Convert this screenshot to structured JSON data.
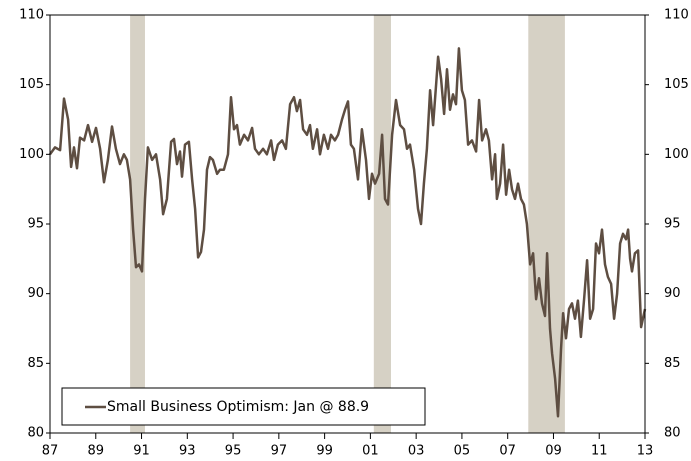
{
  "chart_data": {
    "type": "line",
    "legend": "lower left",
    "xlim": [
      1987,
      2013
    ],
    "ylim": [
      80,
      110
    ],
    "yticks": [
      80,
      85,
      90,
      95,
      100,
      105,
      110
    ],
    "xticks": [
      {
        "value": 1987,
        "label": "87"
      },
      {
        "value": 1989,
        "label": "89"
      },
      {
        "value": 1991,
        "label": "91"
      },
      {
        "value": 1993,
        "label": "93"
      },
      {
        "value": 1995,
        "label": "95"
      },
      {
        "value": 1997,
        "label": "97"
      },
      {
        "value": 1999,
        "label": "99"
      },
      {
        "value": 2001,
        "label": "01"
      },
      {
        "value": 2003,
        "label": "03"
      },
      {
        "value": 2005,
        "label": "05"
      },
      {
        "value": 2007,
        "label": "07"
      },
      {
        "value": 2009,
        "label": "09"
      },
      {
        "value": 2011,
        "label": "11"
      },
      {
        "value": 2013,
        "label": "13"
      }
    ],
    "shaded_periods": [
      [
        1990.5,
        1991.15
      ],
      [
        2001.15,
        2001.9
      ],
      [
        2007.9,
        2009.5
      ]
    ],
    "shade_color": "#d6d1c5",
    "x": [
      1987.0,
      1987.22,
      1987.44,
      1987.61,
      1987.79,
      1987.92,
      1988.05,
      1988.18,
      1988.31,
      1988.49,
      1988.66,
      1988.84,
      1989.01,
      1989.19,
      1989.36,
      1989.53,
      1989.71,
      1989.88,
      1990.06,
      1990.23,
      1990.36,
      1990.5,
      1990.63,
      1990.76,
      1990.89,
      1991.02,
      1991.15,
      1991.28,
      1991.46,
      1991.63,
      1991.81,
      1991.94,
      1992.11,
      1992.29,
      1992.42,
      1992.55,
      1992.68,
      1992.77,
      1992.9,
      1993.07,
      1993.21,
      1993.34,
      1993.47,
      1993.6,
      1993.73,
      1993.86,
      1993.99,
      1994.12,
      1994.3,
      1994.43,
      1994.6,
      1994.78,
      1994.91,
      1995.04,
      1995.17,
      1995.3,
      1995.48,
      1995.65,
      1995.83,
      1995.96,
      1996.13,
      1996.31,
      1996.48,
      1996.66,
      1996.79,
      1996.96,
      1997.14,
      1997.31,
      1997.49,
      1997.66,
      1997.79,
      1997.93,
      1998.06,
      1998.23,
      1998.36,
      1998.49,
      1998.67,
      1998.8,
      1998.97,
      1999.15,
      1999.28,
      1999.45,
      1999.59,
      1999.76,
      1999.89,
      2000.02,
      2000.15,
      2000.28,
      2000.46,
      2000.63,
      2000.81,
      2000.94,
      2001.07,
      2001.2,
      2001.38,
      2001.51,
      2001.64,
      2001.77,
      2001.95,
      2002.12,
      2002.3,
      2002.47,
      2002.6,
      2002.73,
      2002.91,
      2003.08,
      2003.21,
      2003.34,
      2003.47,
      2003.61,
      2003.74,
      2003.87,
      2003.96,
      2004.09,
      2004.22,
      2004.35,
      2004.48,
      2004.61,
      2004.74,
      2004.87,
      2005.0,
      2005.13,
      2005.27,
      2005.44,
      2005.62,
      2005.75,
      2005.88,
      2006.05,
      2006.18,
      2006.32,
      2006.45,
      2006.53,
      2006.67,
      2006.8,
      2006.93,
      2007.06,
      2007.19,
      2007.32,
      2007.45,
      2007.58,
      2007.71,
      2007.84,
      2007.98,
      2008.11,
      2008.24,
      2008.37,
      2008.5,
      2008.63,
      2008.72,
      2008.85,
      2008.94,
      2009.07,
      2009.2,
      2009.33,
      2009.42,
      2009.55,
      2009.68,
      2009.81,
      2009.94,
      2010.07,
      2010.2,
      2010.34,
      2010.47,
      2010.6,
      2010.73,
      2010.86,
      2010.99,
      2011.12,
      2011.25,
      2011.38,
      2011.52,
      2011.65,
      2011.78,
      2011.91,
      2012.04,
      2012.17,
      2012.26,
      2012.35,
      2012.43,
      2012.56,
      2012.7,
      2012.83,
      2013.0
    ],
    "series": [
      {
        "name": "Small Business Optimism: Jan @ 88.9",
        "color": "#5e4e42",
        "values": [
          100,
          100.5,
          100.3,
          104,
          102.5,
          99.1,
          100.5,
          99,
          101.2,
          101,
          102.1,
          100.9,
          101.9,
          100.4,
          98,
          99.6,
          102,
          100.4,
          99.3,
          100,
          99.6,
          98.2,
          94.6,
          91.9,
          92.1,
          91.6,
          96.8,
          100.5,
          99.6,
          100,
          98.2,
          95.7,
          96.8,
          100.9,
          101.1,
          99.3,
          100.2,
          98.4,
          100.7,
          100.9,
          98.2,
          96.1,
          92.6,
          93,
          94.6,
          98.9,
          99.8,
          99.6,
          98.6,
          98.9,
          98.9,
          100,
          104.1,
          101.8,
          102.1,
          100.7,
          101.4,
          101,
          101.9,
          100.4,
          100,
          100.4,
          100,
          101,
          99.6,
          100.7,
          101,
          100.4,
          103.6,
          104.1,
          103.1,
          103.9,
          101.8,
          101.4,
          102.1,
          100.4,
          101.8,
          100,
          101.4,
          100.4,
          101.4,
          101,
          101.4,
          102.5,
          103.2,
          103.8,
          100.7,
          100.4,
          98.2,
          101.8,
          99.6,
          96.8,
          98.6,
          97.9,
          98.6,
          101.4,
          96.8,
          96.4,
          101.4,
          103.9,
          102.1,
          101.8,
          100.4,
          100.7,
          98.9,
          96.1,
          95,
          97.9,
          100.4,
          104.6,
          102.1,
          105,
          107,
          105.4,
          102.9,
          106.1,
          103.2,
          104.3,
          103.6,
          107.6,
          104.6,
          103.9,
          100.7,
          101,
          100.2,
          103.9,
          101,
          101.8,
          101,
          98.2,
          100,
          96.8,
          97.9,
          100.7,
          97.1,
          98.9,
          97.5,
          96.8,
          97.9,
          96.8,
          96.4,
          95,
          92.1,
          92.9,
          89.6,
          91.1,
          89.3,
          88.4,
          92.9,
          87.5,
          85.7,
          83.9,
          81.2,
          86,
          88.6,
          86.8,
          88.9,
          89.3,
          88.2,
          89.5,
          86.9,
          89.6,
          92.4,
          88.2,
          88.9,
          93.6,
          92.9,
          94.6,
          92.1,
          91.2,
          90.7,
          88.2,
          90,
          93.6,
          94.3,
          93.9,
          94.6,
          92.5,
          91.6,
          92.9,
          93.1,
          87.6,
          88.9
        ]
      }
    ]
  }
}
